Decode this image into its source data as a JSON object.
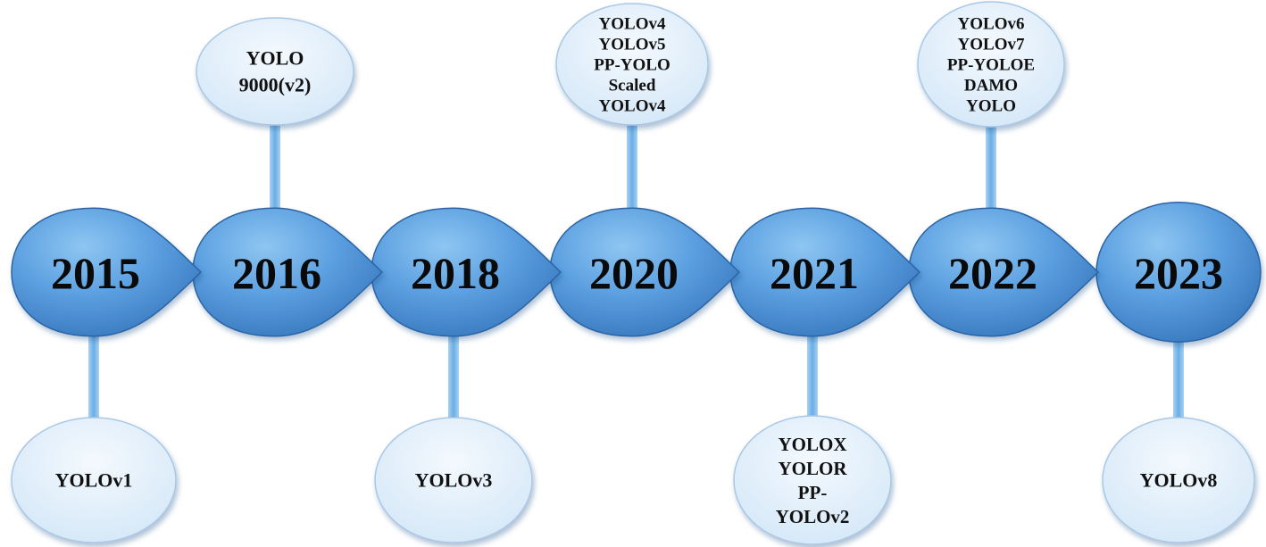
{
  "timeline": [
    {
      "year": "2015",
      "models": [
        "YOLOv1"
      ],
      "side": "bottom"
    },
    {
      "year": "2016",
      "models": [
        "YOLO",
        "9000(v2)"
      ],
      "side": "top"
    },
    {
      "year": "2018",
      "models": [
        "YOLOv3"
      ],
      "side": "bottom"
    },
    {
      "year": "2020",
      "models": [
        "YOLOv4",
        "YOLOv5",
        "PP-YOLO",
        "Scaled",
        "YOLOv4"
      ],
      "side": "top"
    },
    {
      "year": "2021",
      "models": [
        "YOLOX",
        "YOLOR",
        "PP-",
        "YOLOv2"
      ],
      "side": "bottom"
    },
    {
      "year": "2022",
      "models": [
        "YOLOv6",
        "YOLOv7",
        "PP-YOLOE",
        "DAMO",
        "YOLO"
      ],
      "side": "top"
    },
    {
      "year": "2023",
      "models": [
        "YOLOv8"
      ],
      "side": "bottom"
    }
  ],
  "colors": {
    "drop_light": "#8ec6f2",
    "drop_dark": "#2f6fb5",
    "bubble_light": "#f4f9fe",
    "bubble_dark": "#d2e6f7",
    "bubble_stroke": "#a9c8e6",
    "connector": "#7cb8ea"
  }
}
